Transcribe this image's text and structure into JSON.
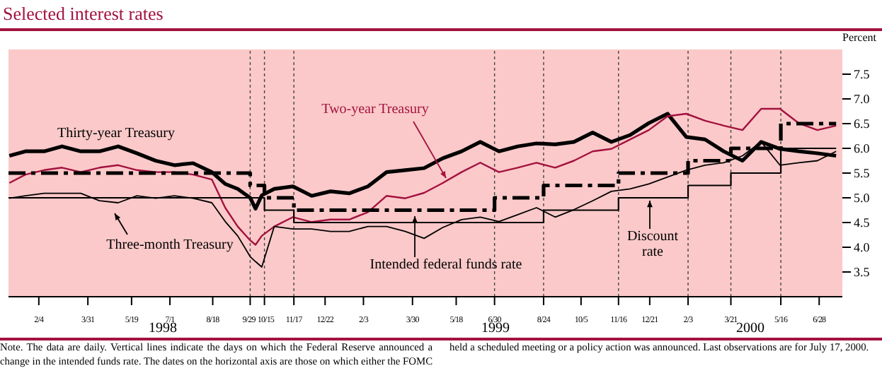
{
  "chart_data": {
    "type": "line",
    "title": "Selected interest rates",
    "ylabel": "Percent",
    "x": [
      "1998-01-02",
      "1998-01-20",
      "1998-02-10",
      "1998-03-02",
      "1998-03-23",
      "1998-04-13",
      "1998-05-04",
      "1998-05-25",
      "1998-06-15",
      "1998-07-06",
      "1998-07-27",
      "1998-08-17",
      "1998-09-01",
      "1998-09-15",
      "1998-09-29",
      "1998-10-05",
      "1998-10-12",
      "1998-10-26",
      "1998-11-16",
      "1998-12-07",
      "1998-12-28",
      "1999-01-18",
      "1999-02-08",
      "1999-03-01",
      "1999-03-22",
      "1999-04-12",
      "1999-05-03",
      "1999-05-24",
      "1999-06-14",
      "1999-07-05",
      "1999-07-26",
      "1999-08-16",
      "1999-09-06",
      "1999-09-27",
      "1999-10-18",
      "1999-11-08",
      "1999-11-29",
      "1999-12-20",
      "2000-01-10",
      "2000-01-31",
      "2000-02-21",
      "2000-03-13",
      "2000-04-03",
      "2000-04-24",
      "2000-05-15",
      "2000-06-05",
      "2000-06-26",
      "2000-07-17"
    ],
    "series": [
      {
        "name": "Thirty-year Treasury",
        "color": "#000000",
        "values": [
          5.85,
          5.94,
          5.94,
          6.04,
          5.94,
          5.94,
          6.04,
          5.9,
          5.75,
          5.66,
          5.7,
          5.52,
          5.28,
          5.18,
          5.0,
          4.78,
          5.05,
          5.18,
          5.23,
          5.04,
          5.13,
          5.09,
          5.23,
          5.52,
          5.56,
          5.6,
          5.8,
          5.94,
          6.13,
          5.94,
          6.04,
          6.1,
          6.08,
          6.13,
          6.32,
          6.13,
          6.27,
          6.51,
          6.7,
          6.23,
          6.18,
          5.94,
          5.75,
          6.13,
          5.99,
          5.94,
          5.9,
          5.85
        ]
      },
      {
        "name": "Two-year Treasury",
        "color": "#a3123f",
        "values": [
          5.3,
          5.47,
          5.56,
          5.61,
          5.52,
          5.61,
          5.66,
          5.56,
          5.52,
          5.52,
          5.47,
          5.37,
          4.8,
          4.42,
          4.14,
          4.05,
          4.23,
          4.42,
          4.61,
          4.51,
          4.56,
          4.56,
          4.71,
          5.04,
          4.99,
          5.1,
          5.3,
          5.52,
          5.71,
          5.52,
          5.61,
          5.71,
          5.61,
          5.75,
          5.94,
          5.99,
          6.18,
          6.37,
          6.65,
          6.7,
          6.56,
          6.46,
          6.37,
          6.8,
          6.8,
          6.51,
          6.37,
          6.46
        ]
      },
      {
        "name": "Three-month Treasury",
        "color": "#000000",
        "values": [
          4.99,
          5.04,
          5.09,
          5.09,
          5.09,
          4.94,
          4.9,
          5.04,
          4.99,
          5.04,
          4.99,
          4.9,
          4.52,
          4.23,
          3.81,
          3.71,
          3.6,
          4.42,
          4.37,
          4.37,
          4.32,
          4.32,
          4.42,
          4.42,
          4.32,
          4.18,
          4.4,
          4.56,
          4.61,
          4.52,
          4.66,
          4.8,
          4.61,
          4.76,
          4.94,
          5.13,
          5.18,
          5.28,
          5.42,
          5.56,
          5.66,
          5.71,
          5.85,
          6.13,
          5.66,
          5.71,
          5.75,
          5.94
        ]
      },
      {
        "name": "Intended federal funds rate",
        "type": "step",
        "color": "#000000",
        "line_style": "dashed",
        "x": [
          "1998-01-01",
          "1998-09-29",
          "1998-10-15",
          "1998-11-17",
          "1999-06-30",
          "1999-08-24",
          "1999-11-16",
          "2000-02-02",
          "2000-03-21",
          "2000-05-16",
          "2000-07-17"
        ],
        "values": [
          5.5,
          5.25,
          5.0,
          4.75,
          5.0,
          5.25,
          5.5,
          5.75,
          6.0,
          6.5,
          6.5
        ]
      },
      {
        "name": "Discount rate",
        "type": "step",
        "color": "#000000",
        "x": [
          "1998-01-01",
          "1998-10-15",
          "1998-11-17",
          "1999-08-24",
          "1999-11-16",
          "2000-02-02",
          "2000-03-21",
          "2000-05-16",
          "2000-07-17"
        ],
        "values": [
          5.0,
          4.75,
          4.5,
          4.75,
          5.0,
          5.25,
          5.5,
          6.0,
          6.0
        ]
      }
    ],
    "xlim": [
      "1998-01-01",
      "2000-07-24"
    ],
    "xticks": [
      {
        "value": "1998-02-04",
        "label": "2/4"
      },
      {
        "value": "1998-03-31",
        "label": "3/31"
      },
      {
        "value": "1998-05-19",
        "label": "5/19"
      },
      {
        "value": "1998-07-01",
        "label": "7/1"
      },
      {
        "value": "1998-08-18",
        "label": "8/18"
      },
      {
        "value": "1998-09-29",
        "label": "9/29"
      },
      {
        "value": "1998-10-15",
        "label": "10/15"
      },
      {
        "value": "1998-11-17",
        "label": "11/17"
      },
      {
        "value": "1998-12-22",
        "label": "12/22"
      },
      {
        "value": "1999-02-03",
        "label": "2/3"
      },
      {
        "value": "1999-03-30",
        "label": "3/30"
      },
      {
        "value": "1999-05-18",
        "label": "5/18"
      },
      {
        "value": "1999-06-30",
        "label": "6/30"
      },
      {
        "value": "1999-08-24",
        "label": "8/24"
      },
      {
        "value": "1999-10-05",
        "label": "10/5"
      },
      {
        "value": "1999-11-16",
        "label": "11/16"
      },
      {
        "value": "1999-12-21",
        "label": "12/21"
      },
      {
        "value": "2000-02-02",
        "label": "2/3"
      },
      {
        "value": "2000-03-21",
        "label": "3/21"
      },
      {
        "value": "2000-05-16",
        "label": "5/16"
      },
      {
        "value": "2000-06-28",
        "label": "6/28"
      }
    ],
    "ylim": [
      3.0,
      8.0
    ],
    "yticks": [
      {
        "value": 3.5,
        "label": "3.5"
      },
      {
        "value": 4.0,
        "label": "4.0"
      },
      {
        "value": 4.5,
        "label": "4.5"
      },
      {
        "value": 5.0,
        "label": "5.0"
      },
      {
        "value": 5.5,
        "label": "5.5"
      },
      {
        "value": 6.0,
        "label": "6.0"
      },
      {
        "value": 6.5,
        "label": "6.5"
      },
      {
        "value": 7.0,
        "label": "7.0"
      },
      {
        "value": 7.5,
        "label": "7.5"
      }
    ],
    "ref_lines": [
      {
        "axis": "x",
        "value": "1998-09-29",
        "color": "#444444",
        "line_style": "dashed"
      },
      {
        "axis": "x",
        "value": "1998-10-15",
        "color": "#444444",
        "line_style": "dashed"
      },
      {
        "axis": "x",
        "value": "1998-11-17",
        "color": "#444444",
        "line_style": "dashed"
      },
      {
        "axis": "x",
        "value": "1999-06-30",
        "color": "#444444",
        "line_style": "dashed"
      },
      {
        "axis": "x",
        "value": "1999-08-24",
        "color": "#444444",
        "line_style": "dashed"
      },
      {
        "axis": "x",
        "value": "1999-11-16",
        "color": "#444444",
        "line_style": "dashed"
      },
      {
        "axis": "x",
        "value": "2000-02-02",
        "color": "#444444",
        "line_style": "dashed"
      },
      {
        "axis": "x",
        "value": "2000-03-21",
        "color": "#444444",
        "line_style": "dashed"
      },
      {
        "axis": "x",
        "value": "2000-05-16",
        "color": "#444444",
        "line_style": "dashed"
      }
    ],
    "annotations": [
      "1998",
      "1999",
      "2000",
      "Note. The data are daily. Vertical lines indicate the days on which the Federal Reserve announced a change in the intended funds rate. The dates on the horizontal axis are those on which either the FOMC held a scheduled meeting or a policy action was announced. Last observations are for July 17, 2000."
    ],
    "grid": false,
    "marker": "none",
    "legend": "bottom left"
  }
}
